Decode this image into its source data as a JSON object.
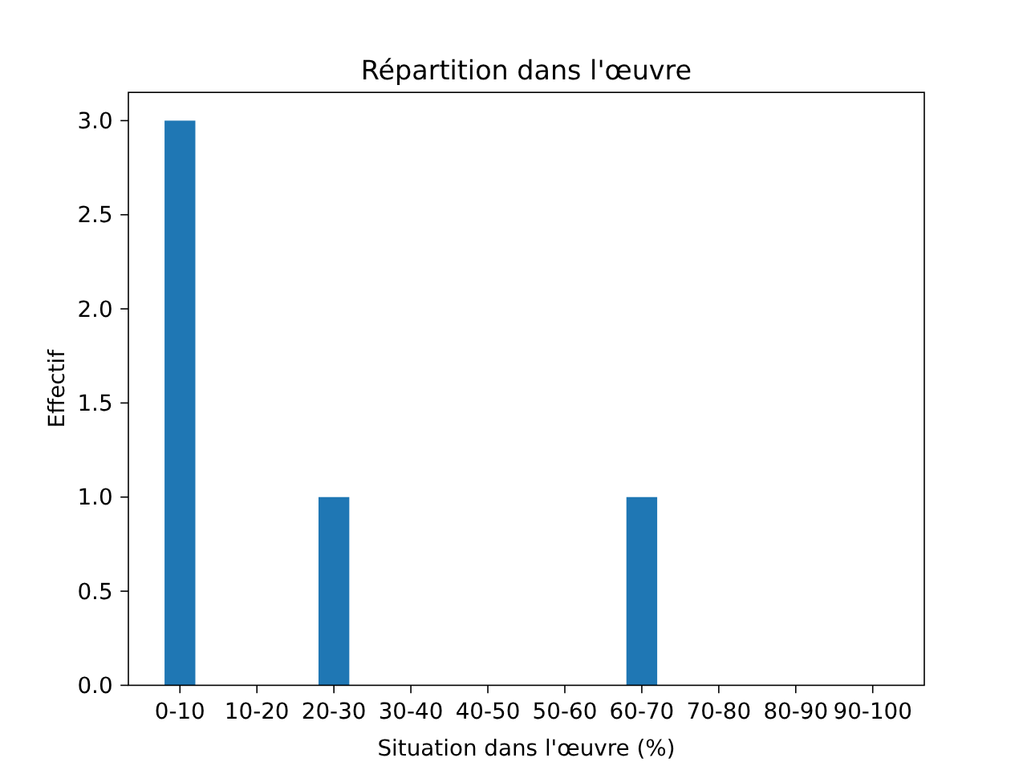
{
  "chart_data": {
    "type": "bar",
    "title": "Répartition dans l'œuvre",
    "xlabel": "Situation dans l'œuvre (%)",
    "ylabel": "Effectif",
    "categories": [
      "0-10",
      "10-20",
      "20-30",
      "30-40",
      "40-50",
      "50-60",
      "60-70",
      "70-80",
      "80-90",
      "90-100"
    ],
    "values": [
      3,
      0,
      1,
      0,
      0,
      0,
      1,
      0,
      0,
      0
    ],
    "color": "#1f77b4",
    "ylim": [
      0,
      3.15
    ],
    "yticks": [
      {
        "value": 0,
        "label": "0.0"
      },
      {
        "value": 0.5,
        "label": "0.5"
      },
      {
        "value": 1,
        "label": "1.0"
      },
      {
        "value": 1.5,
        "label": "1.5"
      },
      {
        "value": 2,
        "label": "2.0"
      },
      {
        "value": 2.5,
        "label": "2.5"
      },
      {
        "value": 3,
        "label": "3.0"
      }
    ]
  }
}
